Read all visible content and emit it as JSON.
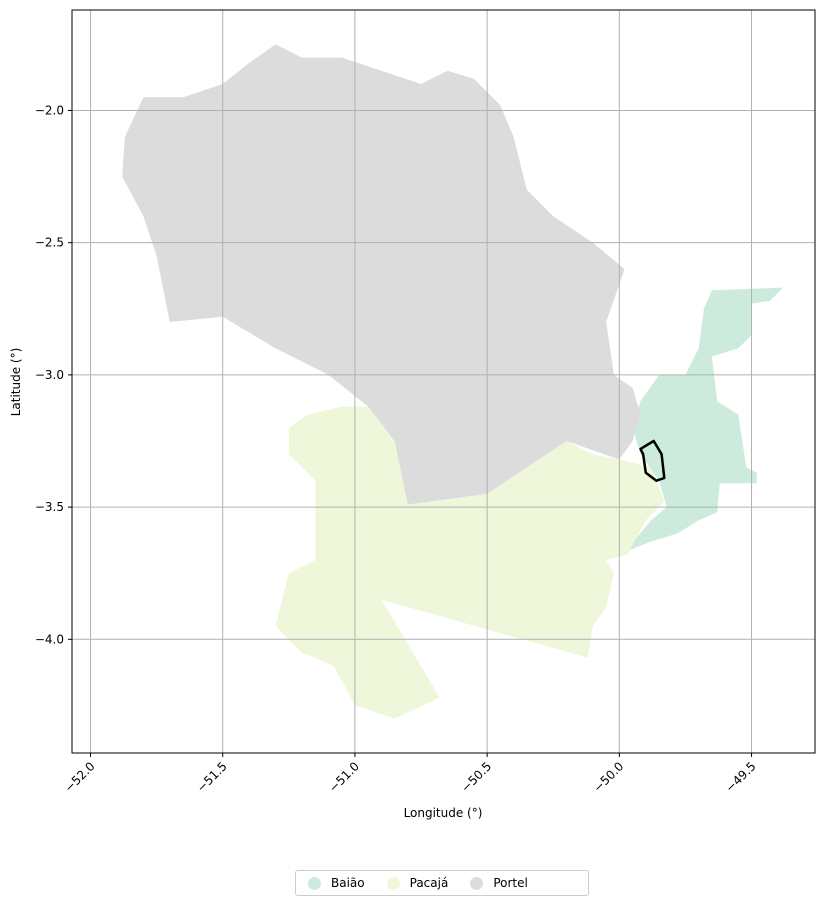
{
  "chart_data": {
    "type": "map",
    "xlabel": "Longitude (°)",
    "ylabel": "Latitude (°)",
    "xlim": [
      -52.07,
      -49.26
    ],
    "ylim": [
      -4.43,
      -1.62
    ],
    "x_ticks": [
      -52.0,
      -51.5,
      -51.0,
      -50.5,
      -50.0,
      -49.5
    ],
    "x_tick_labels": [
      "−52.0",
      "−51.5",
      "−51.0",
      "−50.5",
      "−50.0",
      "−49.5"
    ],
    "y_ticks": [
      -2.0,
      -2.5,
      -3.0,
      -3.5,
      -4.0
    ],
    "y_tick_labels": [
      "−2.0",
      "−2.5",
      "−3.0",
      "−3.5",
      "−4.0"
    ],
    "grid": true,
    "legend_position": "bottom-center",
    "regions": [
      {
        "name": "Baião",
        "color": "#cdebdc",
        "polygon": [
          [
            -49.95,
            -3.2
          ],
          [
            -49.92,
            -3.1
          ],
          [
            -49.85,
            -3.0
          ],
          [
            -49.75,
            -3.0
          ],
          [
            -49.7,
            -2.9
          ],
          [
            -49.68,
            -2.75
          ],
          [
            -49.65,
            -2.68
          ],
          [
            -49.38,
            -2.67
          ],
          [
            -49.43,
            -2.72
          ],
          [
            -49.5,
            -2.73
          ],
          [
            -49.5,
            -2.85
          ],
          [
            -49.55,
            -2.9
          ],
          [
            -49.65,
            -2.93
          ],
          [
            -49.63,
            -3.1
          ],
          [
            -49.55,
            -3.15
          ],
          [
            -49.52,
            -3.35
          ],
          [
            -49.48,
            -3.37
          ],
          [
            -49.48,
            -3.41
          ],
          [
            -49.62,
            -3.41
          ],
          [
            -49.63,
            -3.52
          ],
          [
            -49.7,
            -3.55
          ],
          [
            -49.78,
            -3.6
          ],
          [
            -49.88,
            -3.63
          ],
          [
            -49.98,
            -3.67
          ],
          [
            -49.88,
            -3.55
          ],
          [
            -49.82,
            -3.5
          ],
          [
            -49.85,
            -3.4
          ],
          [
            -49.92,
            -3.3
          ]
        ]
      },
      {
        "name": "Pacajá",
        "color": "#eff7da",
        "polygon": [
          [
            -51.05,
            -3.12
          ],
          [
            -50.95,
            -3.12
          ],
          [
            -50.85,
            -3.25
          ],
          [
            -50.8,
            -3.49
          ],
          [
            -50.5,
            -3.45
          ],
          [
            -50.35,
            -3.35
          ],
          [
            -50.2,
            -3.25
          ],
          [
            -50.1,
            -3.3
          ],
          [
            -50.0,
            -3.32
          ],
          [
            -49.88,
            -3.35
          ],
          [
            -49.83,
            -3.48
          ],
          [
            -49.9,
            -3.55
          ],
          [
            -49.97,
            -3.68
          ],
          [
            -50.05,
            -3.7
          ],
          [
            -50.02,
            -3.75
          ],
          [
            -50.05,
            -3.88
          ],
          [
            -50.1,
            -3.95
          ],
          [
            -50.12,
            -4.07
          ],
          [
            -50.9,
            -3.85
          ],
          [
            -50.68,
            -4.22
          ],
          [
            -50.85,
            -4.3
          ],
          [
            -51.0,
            -4.25
          ],
          [
            -51.08,
            -4.1
          ],
          [
            -51.2,
            -4.05
          ],
          [
            -51.3,
            -3.95
          ],
          [
            -51.25,
            -3.75
          ],
          [
            -51.15,
            -3.7
          ],
          [
            -51.15,
            -3.4
          ],
          [
            -51.25,
            -3.3
          ],
          [
            -51.25,
            -3.2
          ],
          [
            -51.18,
            -3.15
          ]
        ]
      },
      {
        "name": "Portel",
        "color": "#dcdcdc",
        "polygon": [
          [
            -51.87,
            -2.1
          ],
          [
            -51.8,
            -1.95
          ],
          [
            -51.65,
            -1.95
          ],
          [
            -51.5,
            -1.9
          ],
          [
            -51.4,
            -1.82
          ],
          [
            -51.3,
            -1.75
          ],
          [
            -51.2,
            -1.8
          ],
          [
            -51.05,
            -1.8
          ],
          [
            -50.9,
            -1.85
          ],
          [
            -50.75,
            -1.9
          ],
          [
            -50.65,
            -1.85
          ],
          [
            -50.55,
            -1.88
          ],
          [
            -50.45,
            -1.98
          ],
          [
            -50.4,
            -2.1
          ],
          [
            -50.35,
            -2.3
          ],
          [
            -50.25,
            -2.4
          ],
          [
            -50.1,
            -2.5
          ],
          [
            -49.98,
            -2.6
          ],
          [
            -50.05,
            -2.8
          ],
          [
            -50.02,
            -3.0
          ],
          [
            -49.95,
            -3.05
          ],
          [
            -49.92,
            -3.15
          ],
          [
            -49.95,
            -3.25
          ],
          [
            -50.0,
            -3.32
          ],
          [
            -50.2,
            -3.25
          ],
          [
            -50.35,
            -3.35
          ],
          [
            -50.5,
            -3.45
          ],
          [
            -50.8,
            -3.49
          ],
          [
            -50.85,
            -3.25
          ],
          [
            -50.95,
            -3.12
          ],
          [
            -51.1,
            -3.0
          ],
          [
            -51.3,
            -2.9
          ],
          [
            -51.5,
            -2.78
          ],
          [
            -51.7,
            -2.8
          ],
          [
            -51.75,
            -2.55
          ],
          [
            -51.8,
            -2.4
          ],
          [
            -51.88,
            -2.25
          ]
        ]
      }
    ],
    "outline": {
      "color": "#000000",
      "polygon": [
        [
          -49.92,
          -3.28
        ],
        [
          -49.87,
          -3.25
        ],
        [
          -49.84,
          -3.3
        ],
        [
          -49.83,
          -3.39
        ],
        [
          -49.86,
          -3.4
        ],
        [
          -49.9,
          -3.37
        ],
        [
          -49.91,
          -3.3
        ]
      ]
    }
  },
  "legend": {
    "items": [
      {
        "label": "Baião",
        "color": "#cdebdc"
      },
      {
        "label": "Pacajá",
        "color": "#eff7da"
      },
      {
        "label": "Portel",
        "color": "#dcdcdc"
      }
    ]
  }
}
